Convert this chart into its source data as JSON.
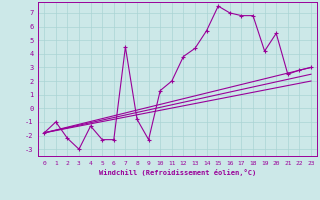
{
  "xlabel": "Windchill (Refroidissement éolien,°C)",
  "xlim": [
    -0.5,
    23.5
  ],
  "ylim": [
    -3.5,
    7.8
  ],
  "xticks": [
    0,
    1,
    2,
    3,
    4,
    5,
    6,
    7,
    8,
    9,
    10,
    11,
    12,
    13,
    14,
    15,
    16,
    17,
    18,
    19,
    20,
    21,
    22,
    23
  ],
  "yticks": [
    -3,
    -2,
    -1,
    0,
    1,
    2,
    3,
    4,
    5,
    6,
    7
  ],
  "bg_color": "#cce8e8",
  "grid_color": "#aad4d4",
  "line_color": "#990099",
  "main_line": {
    "x": [
      0,
      1,
      2,
      3,
      4,
      5,
      6,
      7,
      8,
      9,
      10,
      11,
      12,
      13,
      14,
      15,
      16,
      17,
      18,
      19,
      20,
      21,
      22,
      23
    ],
    "y": [
      -1.8,
      -1.0,
      -2.2,
      -3.0,
      -1.3,
      -2.3,
      -2.3,
      4.5,
      -0.8,
      -2.3,
      1.3,
      2.0,
      3.8,
      4.4,
      5.7,
      7.5,
      7.0,
      6.8,
      6.8,
      4.2,
      5.5,
      2.5,
      2.8,
      3.0
    ]
  },
  "trend_lines": [
    {
      "x": [
        0,
        23
      ],
      "y": [
        -1.8,
        3.0
      ]
    },
    {
      "x": [
        0,
        23
      ],
      "y": [
        -1.8,
        2.5
      ]
    },
    {
      "x": [
        0,
        23
      ],
      "y": [
        -1.8,
        2.0
      ]
    }
  ]
}
